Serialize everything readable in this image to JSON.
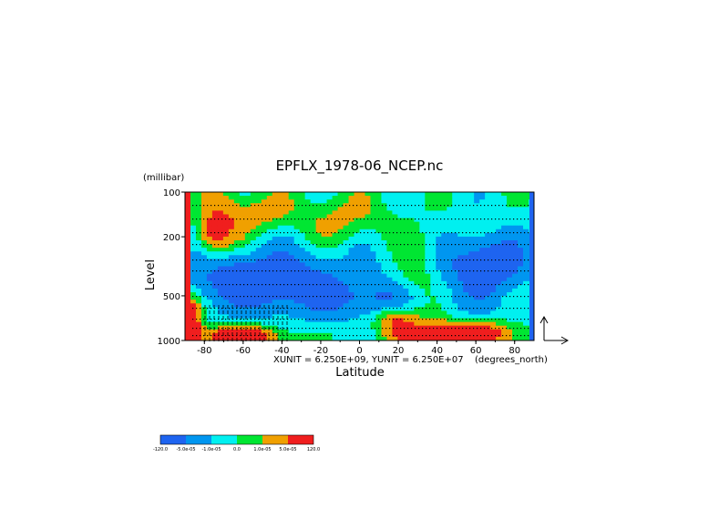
{
  "chart_data": {
    "type": "heatmap",
    "title": "EPFLX_1978-06_NCEP.nc",
    "xlabel": "Latitude",
    "ylabel": "Level",
    "y_units": "(millibar)",
    "x_units": "(degrees_north)",
    "x_ticks": [
      -80,
      -60,
      -40,
      -20,
      0,
      20,
      40,
      60,
      80
    ],
    "y_ticks": [
      100,
      200,
      500,
      1000
    ],
    "xlim": [
      -90,
      90
    ],
    "ylim": [
      1000,
      100
    ],
    "y_scale": "log",
    "vector_scale_text": "XUNIT = 6.250E+09, YUNIT = 6.250E+07",
    "colorbar": {
      "labels": [
        "-120.0",
        "-5.0e-05",
        "-1.0e-05",
        "0.0",
        "1.0e-05",
        "5.0e-05",
        "120.0"
      ],
      "colors": [
        "#1e64f0",
        "#0096f0",
        "#00f0f0",
        "#00e632",
        "#f0a000",
        "#f01e1e"
      ]
    }
  }
}
